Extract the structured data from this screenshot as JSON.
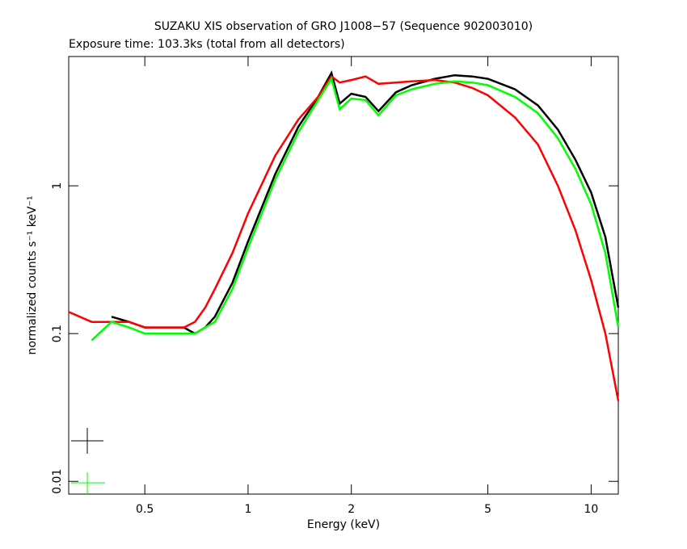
{
  "chart_data": {
    "type": "line",
    "title": "SUZAKU XIS observation of GRO J1008−57 (Sequence 902003010)",
    "subtitle": "Exposure time: 103.3ks (total from all detectors)",
    "xlabel": "Energy (keV)",
    "ylabel": "normalized counts s⁻¹ keV⁻¹",
    "xlog": true,
    "ylog": true,
    "x": [
      0.3,
      0.35,
      0.4,
      0.45,
      0.5,
      0.55,
      0.6,
      0.65,
      0.7,
      0.75,
      0.8,
      0.9,
      1.0,
      1.2,
      1.4,
      1.6,
      1.75,
      1.85,
      2.0,
      2.2,
      2.4,
      2.7,
      3,
      3.5,
      4,
      4.5,
      5,
      6,
      7,
      8,
      9,
      10,
      11,
      12
    ],
    "series": [
      {
        "color": "#000000",
        "values": [
          null,
          null,
          0.13,
          0.12,
          0.11,
          0.11,
          0.11,
          0.11,
          0.1,
          0.11,
          0.13,
          0.22,
          0.42,
          1.2,
          2.5,
          4.0,
          5.8,
          3.6,
          4.2,
          4.0,
          3.2,
          4.3,
          4.8,
          5.3,
          5.6,
          5.5,
          5.3,
          4.5,
          3.5,
          2.4,
          1.5,
          0.9,
          0.45,
          0.15
        ]
      },
      {
        "color": "#ff0000",
        "values": [
          0.14,
          0.12,
          0.12,
          0.12,
          0.11,
          0.11,
          0.11,
          0.11,
          0.12,
          0.15,
          0.2,
          0.35,
          0.65,
          1.6,
          2.8,
          4.0,
          5.5,
          5.0,
          5.2,
          5.5,
          4.9,
          5.0,
          5.1,
          5.2,
          5.0,
          4.6,
          4.1,
          2.9,
          1.9,
          1.0,
          0.5,
          0.23,
          0.1,
          0.035
        ]
      },
      {
        "color": "#00ff00",
        "values": [
          null,
          0.09,
          0.12,
          0.11,
          0.1,
          0.1,
          0.1,
          0.1,
          0.1,
          0.11,
          0.12,
          0.2,
          0.38,
          1.1,
          2.3,
          3.8,
          5.3,
          3.3,
          3.9,
          3.8,
          3.0,
          4.1,
          4.5,
          4.9,
          5.1,
          5.0,
          4.8,
          4.0,
          3.1,
          2.1,
          1.3,
          0.75,
          0.35,
          0.11
        ]
      }
    ],
    "xlim": [
      0.3,
      12
    ],
    "ylim": [
      0.0082,
      7.5
    ],
    "xticks": [
      0.5,
      1,
      2,
      5,
      10
    ],
    "yticks": [
      0.01,
      0.1,
      1
    ]
  }
}
